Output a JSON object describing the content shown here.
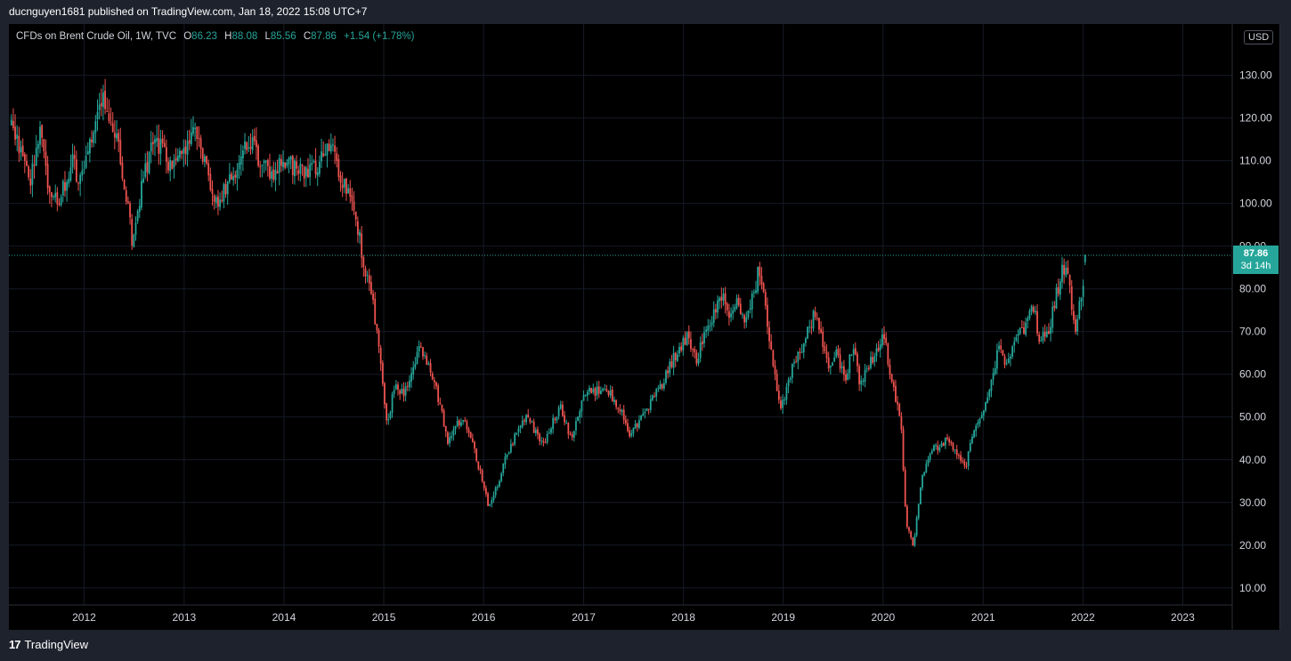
{
  "header": {
    "published_text": "ducnguyen1681 published on TradingView.com, Jan 18, 2022 15:08 UTC+7"
  },
  "legend": {
    "symbol": "CFDs on Brent Crude Oil, 1W, TVC",
    "open_label": "O",
    "open_value": "86.23",
    "high_label": "H",
    "high_value": "88.08",
    "low_label": "L",
    "low_value": "85.56",
    "close_label": "C",
    "close_value": "87.86",
    "change": "+1.54 (+1.78%)"
  },
  "currency": "USD",
  "last_price": {
    "price": "87.86",
    "countdown": "3d 14h"
  },
  "footer": {
    "logo_mark": "17",
    "brand": "TradingView"
  },
  "colors": {
    "up": "#26a69a",
    "down": "#ef5350",
    "background": "#000000",
    "grid": "#161a25",
    "text": "#d1d4dc"
  },
  "chart_data": {
    "type": "candlestick",
    "interval": "1W",
    "ylim": [
      6,
      142
    ],
    "y_ticks": [
      "10.00",
      "20.00",
      "30.00",
      "40.00",
      "50.00",
      "60.00",
      "70.00",
      "80.00",
      "90.00",
      "100.00",
      "110.00",
      "120.00",
      "130.00"
    ],
    "x_ticks": [
      "2012",
      "2013",
      "2014",
      "2015",
      "2016",
      "2017",
      "2018",
      "2019",
      "2020",
      "2021",
      "2022",
      "2023"
    ],
    "x_range": [
      "2011-04",
      "2023-07"
    ],
    "last_price_line": 87.86,
    "grid": true,
    "close_anchors": [
      [
        "2011-04-10",
        118
      ],
      [
        "2011-05-15",
        112
      ],
      [
        "2011-06-20",
        106
      ],
      [
        "2011-07-25",
        117
      ],
      [
        "2011-08-22",
        104
      ],
      [
        "2011-10-05",
        101
      ],
      [
        "2011-11-15",
        110
      ],
      [
        "2011-12-20",
        105
      ],
      [
        "2012-02-10",
        118
      ],
      [
        "2012-03-10",
        126
      ],
      [
        "2012-04-10",
        120
      ],
      [
        "2012-05-15",
        110
      ],
      [
        "2012-06-25",
        91
      ],
      [
        "2012-08-01",
        105
      ],
      [
        "2012-09-10",
        115
      ],
      [
        "2012-10-15",
        112
      ],
      [
        "2012-11-20",
        108
      ],
      [
        "2012-12-25",
        111
      ],
      [
        "2013-02-08",
        118
      ],
      [
        "2013-03-25",
        108
      ],
      [
        "2013-04-20",
        99
      ],
      [
        "2013-06-01",
        103
      ],
      [
        "2013-07-10",
        107
      ],
      [
        "2013-08-25",
        115
      ],
      [
        "2013-10-10",
        109
      ],
      [
        "2013-11-15",
        107
      ],
      [
        "2013-12-25",
        111
      ],
      [
        "2014-02-20",
        108
      ],
      [
        "2014-04-20",
        108
      ],
      [
        "2014-06-20",
        114
      ],
      [
        "2014-07-20",
        107
      ],
      [
        "2014-08-20",
        102
      ],
      [
        "2014-09-20",
        97
      ],
      [
        "2014-10-20",
        86
      ],
      [
        "2014-11-20",
        78
      ],
      [
        "2014-12-20",
        62
      ],
      [
        "2015-01-15",
        48
      ],
      [
        "2015-02-10",
        58
      ],
      [
        "2015-03-15",
        55
      ],
      [
        "2015-05-10",
        66
      ],
      [
        "2015-06-20",
        62
      ],
      [
        "2015-07-25",
        53
      ],
      [
        "2015-08-24",
        44
      ],
      [
        "2015-09-20",
        48
      ],
      [
        "2015-10-20",
        49
      ],
      [
        "2015-11-20",
        44
      ],
      [
        "2015-12-20",
        37
      ],
      [
        "2016-01-20",
        29
      ],
      [
        "2016-02-20",
        34
      ],
      [
        "2016-03-20",
        40
      ],
      [
        "2016-04-20",
        45
      ],
      [
        "2016-06-08",
        51
      ],
      [
        "2016-07-10",
        46
      ],
      [
        "2016-08-05",
        43
      ],
      [
        "2016-09-01",
        48
      ],
      [
        "2016-10-10",
        52
      ],
      [
        "2016-11-15",
        45
      ],
      [
        "2017-01-05",
        56
      ],
      [
        "2017-03-01",
        56
      ],
      [
        "2017-04-10",
        55
      ],
      [
        "2017-05-15",
        52
      ],
      [
        "2017-06-20",
        45
      ],
      [
        "2017-07-20",
        49
      ],
      [
        "2017-09-01",
        53
      ],
      [
        "2017-10-15",
        58
      ],
      [
        "2017-11-20",
        63
      ],
      [
        "2018-01-15",
        69
      ],
      [
        "2018-02-15",
        63
      ],
      [
        "2018-03-20",
        69
      ],
      [
        "2018-05-20",
        79
      ],
      [
        "2018-06-15",
        74
      ],
      [
        "2018-07-15",
        77
      ],
      [
        "2018-08-15",
        72
      ],
      [
        "2018-09-15",
        79
      ],
      [
        "2018-10-05",
        85
      ],
      [
        "2018-11-01",
        74
      ],
      [
        "2018-11-30",
        60
      ],
      [
        "2018-12-25",
        52
      ],
      [
        "2019-01-30",
        61
      ],
      [
        "2019-03-10",
        66
      ],
      [
        "2019-04-25",
        74
      ],
      [
        "2019-06-15",
        62
      ],
      [
        "2019-07-15",
        65
      ],
      [
        "2019-08-15",
        59
      ],
      [
        "2019-09-16",
        67
      ],
      [
        "2019-10-05",
        58
      ],
      [
        "2019-11-20",
        63
      ],
      [
        "2020-01-06",
        69
      ],
      [
        "2020-02-01",
        58
      ],
      [
        "2020-03-05",
        50
      ],
      [
        "2020-03-25",
        25
      ],
      [
        "2020-04-21",
        20
      ],
      [
        "2020-05-20",
        35
      ],
      [
        "2020-06-20",
        42
      ],
      [
        "2020-07-20",
        43
      ],
      [
        "2020-08-25",
        45
      ],
      [
        "2020-09-20",
        42
      ],
      [
        "2020-10-30",
        38
      ],
      [
        "2020-11-25",
        47
      ],
      [
        "2020-12-30",
        51
      ],
      [
        "2021-01-20",
        55
      ],
      [
        "2021-02-25",
        66
      ],
      [
        "2021-03-25",
        63
      ],
      [
        "2021-04-25",
        67
      ],
      [
        "2021-06-10",
        72
      ],
      [
        "2021-07-05",
        76
      ],
      [
        "2021-07-20",
        69
      ],
      [
        "2021-08-20",
        68
      ],
      [
        "2021-09-20",
        77
      ],
      [
        "2021-10-20",
        85
      ],
      [
        "2021-11-10",
        83
      ],
      [
        "2021-11-28",
        72
      ],
      [
        "2021-12-05",
        70
      ],
      [
        "2021-12-25",
        78
      ],
      [
        "2022-01-14",
        87.86
      ]
    ]
  }
}
